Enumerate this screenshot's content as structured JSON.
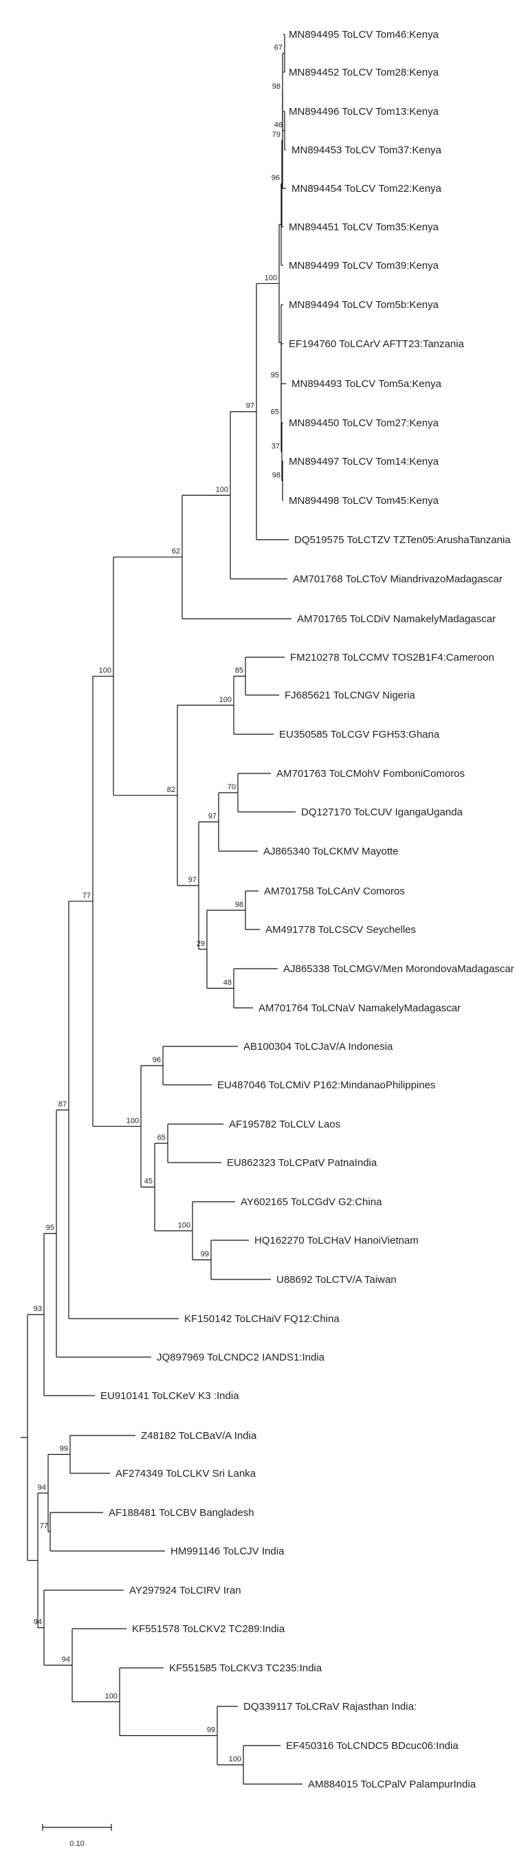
{
  "taxa": [
    "MN894495 ToLCV Tom46:Kenya",
    "MN894452 ToLCV Tom28:Kenya",
    "MN894496 ToLCV Tom13:Kenya",
    "MN894453 ToLCV Tom37:Kenya",
    "MN894454 ToLCV Tom22:Kenya",
    "MN894451 ToLCV Tom35:Kenya",
    "MN894499 ToLCV Tom39:Kenya",
    "MN894494 ToLCV Tom5b:Kenya",
    "EF194760 ToLCArV AFTT23:Tanzania",
    "MN894493 ToLCV Tom5a:Kenya",
    "MN894450 ToLCV Tom27:Kenya",
    "MN894497 ToLCV Tom14:Kenya",
    "MN894498 ToLCV Tom45:Kenya",
    "DQ519575 ToLCTZV TZTen05:ArushaTanzania",
    "AM701768 ToLCToV MiandrivazoMadagascar",
    "AM701765 ToLCDiV NamakelyMadagascar",
    "FM210278 ToLCCMV TOS2B1F4:Cameroon",
    "FJ685621 ToLCNGV Nigeria",
    "EU350585 ToLCGV FGH53:Ghana",
    "AM701763 ToLCMohV FomboniComoros",
    "DQ127170 ToLCUV IgangaUganda",
    "AJ865340 ToLCKMV Mayotte",
    "AM701758 ToLCAnV Comoros",
    "AM491778 ToLCSCV Seychelles",
    "AJ865338 ToLCMGV/Men MorondovaMadagascar",
    "AM701764 ToLCNaV NamakelyMadagascar",
    "AB100304 ToLCJaV/A Indonesia",
    "EU487046 ToLCMiV P162:MindanaoPhilippines",
    "AF195782 ToLCLV Laos",
    "EU862323 ToLCPatV PatnaIndia",
    "AY602165 ToLCGdV G2:China",
    "HQ162270 ToLCHaV HanoiVietnam",
    "U88692 ToLCTV/A Taiwan",
    "KF150142 ToLCHaiV FQ12:China",
    "JQ897969 ToLCNDC2 IANDS1:India",
    "EU910141 ToLCKeV K3 :India",
    "Z48182 ToLCBaV/A India",
    "AF274349 ToLCLKV Sri Lanka",
    "AF188481 ToLCBV Bangladesh",
    "HM991146 ToLCJV India",
    "AY297924 ToLCIRV Iran",
    "KF551578 ToLCKV2 TC289:India",
    "KF551585 ToLCKV3 TC235:India",
    "DQ339117 ToLCRaV Rajasthan India:",
    "EF450316 ToLCNDC5 BDcuc06:India",
    "AM884015 ToLCPalV PalampurIndia"
  ],
  "bootstrap": [
    "67",
    "46",
    "98",
    "79",
    "96",
    "100",
    "95",
    "65",
    "37",
    "98",
    "97",
    "100",
    "62",
    "85",
    "100",
    "70",
    "97",
    "98",
    "97",
    "29",
    "48",
    "82",
    "100",
    "77",
    "96",
    "100",
    "65",
    "45",
    "100",
    "99",
    "87",
    "95",
    "93",
    "99",
    "77",
    "94",
    "94",
    "94",
    "100",
    "99",
    "100"
  ],
  "scale_label": "0.10"
}
